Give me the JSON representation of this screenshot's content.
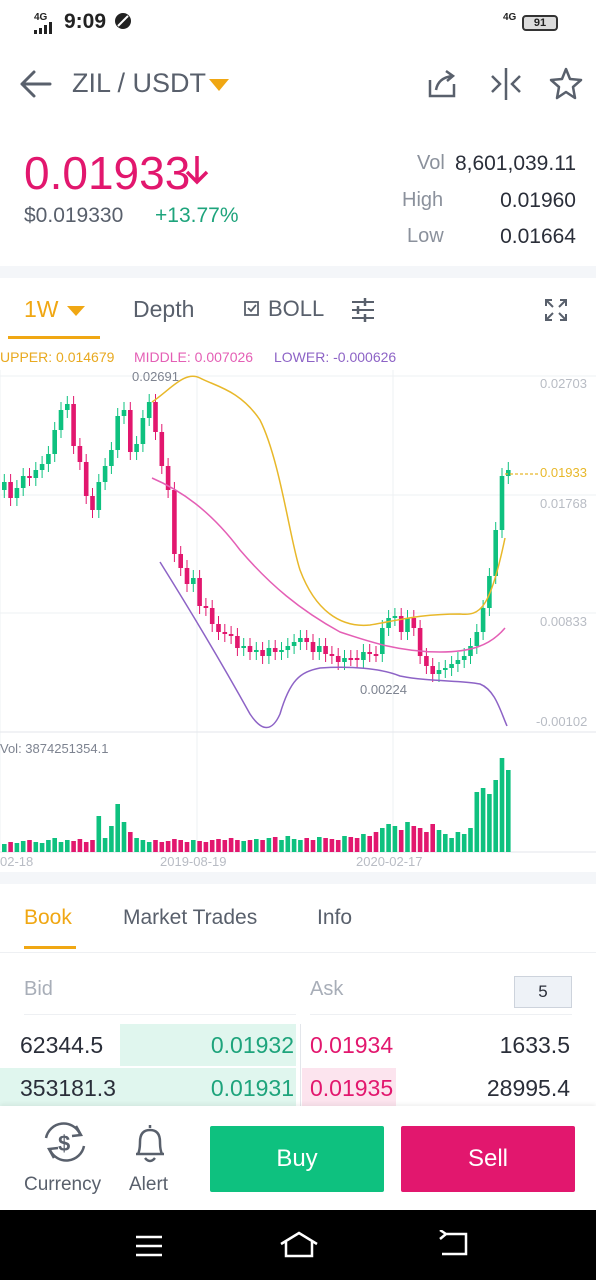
{
  "status_bar": {
    "time": "9:09",
    "network": "4G",
    "network_right": "4G",
    "battery": "91"
  },
  "header": {
    "pair": "ZIL / USDT"
  },
  "price": {
    "last": "0.01933",
    "usd": "$0.019330",
    "change": "+13.77%"
  },
  "stats": {
    "vol_label": "Vol",
    "vol": "8,601,039.11",
    "high_label": "High",
    "high": "0.01960",
    "low_label": "Low",
    "low": "0.01664"
  },
  "chart_tabs": {
    "interval": "1W",
    "depth": "Depth",
    "indicator": "BOLL"
  },
  "indicator": {
    "upper": "UPPER: 0.014679",
    "middle": "MIDDLE: 0.007026",
    "lower": "LOWER: -0.000626"
  },
  "colors": {
    "up": "#0ec17f",
    "down": "#e2176e",
    "upper": "#e8b82a",
    "middle": "#e45fb5",
    "lower": "#8d63c6",
    "accent": "#f0a713"
  },
  "chart_data": {
    "type": "candlestick",
    "y_axis_labels": [
      "0.02703",
      "0.01768",
      "0.00833",
      "-0.00102"
    ],
    "x_axis_labels": [
      "02-18",
      "2019-08-19",
      "2020-02-17"
    ],
    "last_price_label": "0.01933",
    "max_label": "0.02691",
    "min_label": "0.00224",
    "volume_label": "Vol: 3874251354.1",
    "ylim": [
      -0.00102,
      0.02703
    ]
  },
  "book": {
    "tabs": [
      "Book",
      "Market Trades",
      "Info"
    ],
    "bid_header": "Bid",
    "ask_header": "Ask",
    "depth": "5",
    "rows": [
      {
        "bid_amount": "62344.5",
        "bid_price": "0.01932",
        "ask_price": "0.01934",
        "ask_amount": "1633.5"
      },
      {
        "bid_amount": "353181.3",
        "bid_price": "0.01931",
        "ask_price": "0.01935",
        "ask_amount": "28995.4"
      }
    ]
  },
  "bottom": {
    "currency": "Currency",
    "alert": "Alert",
    "buy": "Buy",
    "sell": "Sell"
  }
}
